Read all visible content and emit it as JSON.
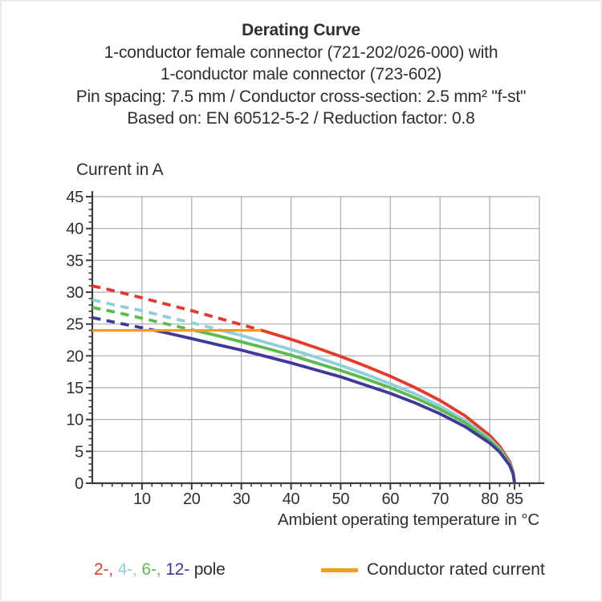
{
  "title": {
    "heading": "Derating Curve",
    "lines": [
      "1-conductor female connector (721-202/026-000) with",
      "1-conductor male connector (723-602)",
      "Pin spacing: 7.5 mm / Conductor cross-section: 2.5 mm² \"f-st\"",
      "Based on: EN 60512-5-2 / Reduction factor: 0.8"
    ]
  },
  "chart_data": {
    "type": "line",
    "title": "Derating Curve",
    "xlabel": "Ambient operating temperature in °C",
    "ylabel": "Current in A",
    "xlim": [
      0,
      90
    ],
    "ylim": [
      0,
      45
    ],
    "x_major_ticks": [
      10,
      20,
      30,
      40,
      50,
      60,
      70,
      80,
      85
    ],
    "x_minor_tick_step": 2,
    "y_major_ticks": [
      0,
      5,
      10,
      15,
      20,
      25,
      30,
      35,
      40,
      45
    ],
    "y_minor_tick_step": 1,
    "grid": true,
    "x": [
      0,
      5,
      10,
      15,
      20,
      25,
      30,
      35,
      40,
      45,
      50,
      55,
      60,
      65,
      70,
      75,
      80,
      82,
      84,
      84.7,
      85
    ],
    "series": [
      {
        "name": "2-pole",
        "color": "#e6392c",
        "dashed_above_rated": true,
        "solid_from": 34,
        "values": [
          31.0,
          30.1,
          29.1,
          28.1,
          27.1,
          26.0,
          24.9,
          23.8,
          22.6,
          21.3,
          19.9,
          18.4,
          16.8,
          15.0,
          13.0,
          10.6,
          7.5,
          5.8,
          3.4,
          1.8,
          0
        ]
      },
      {
        "name": "4-pole",
        "color": "#8ecfdb",
        "dashed_above_rated": true,
        "solid_from": 26,
        "values": [
          28.8,
          27.9,
          27.1,
          26.1,
          25.2,
          24.2,
          23.2,
          22.1,
          21.0,
          19.8,
          18.5,
          17.1,
          15.6,
          14.0,
          12.1,
          9.9,
          7.0,
          5.4,
          3.1,
          1.7,
          0
        ]
      },
      {
        "name": "6-pole",
        "color": "#5cba4e",
        "dashed_above_rated": true,
        "solid_from": 20.7,
        "values": [
          27.6,
          26.8,
          25.9,
          25.0,
          24.1,
          23.2,
          22.2,
          21.2,
          20.1,
          18.9,
          17.7,
          16.4,
          15.0,
          13.4,
          11.6,
          9.5,
          6.7,
          5.2,
          3.0,
          1.6,
          0
        ]
      },
      {
        "name": "12-pole",
        "color": "#3e3a99",
        "dashed_above_rated": true,
        "solid_from": 12.6,
        "values": [
          26.0,
          25.2,
          24.4,
          23.6,
          22.7,
          21.8,
          20.9,
          19.9,
          18.9,
          17.8,
          16.7,
          15.4,
          14.1,
          12.6,
          10.9,
          8.9,
          6.3,
          4.9,
          2.8,
          1.5,
          0
        ]
      }
    ],
    "rated_current_line": {
      "value": 24,
      "x_start": 0,
      "x_end": 34,
      "color": "#f59b1f"
    },
    "legend_position": "bottom"
  },
  "legend": {
    "pole_items": [
      {
        "text": "2-,",
        "color": "#e6392c"
      },
      {
        "text": "4-,",
        "color": "#8ecfdb"
      },
      {
        "text": "6-,",
        "color": "#5cba4e"
      },
      {
        "text": "12-",
        "color": "#3e3a99"
      }
    ],
    "pole_suffix": " pole",
    "rated": {
      "label": "Conductor rated current",
      "color": "#f59b1f"
    }
  },
  "colors": {
    "text": "#2f2f2f",
    "grid": "#aaaaaa",
    "axis": "#3c3c3c"
  }
}
